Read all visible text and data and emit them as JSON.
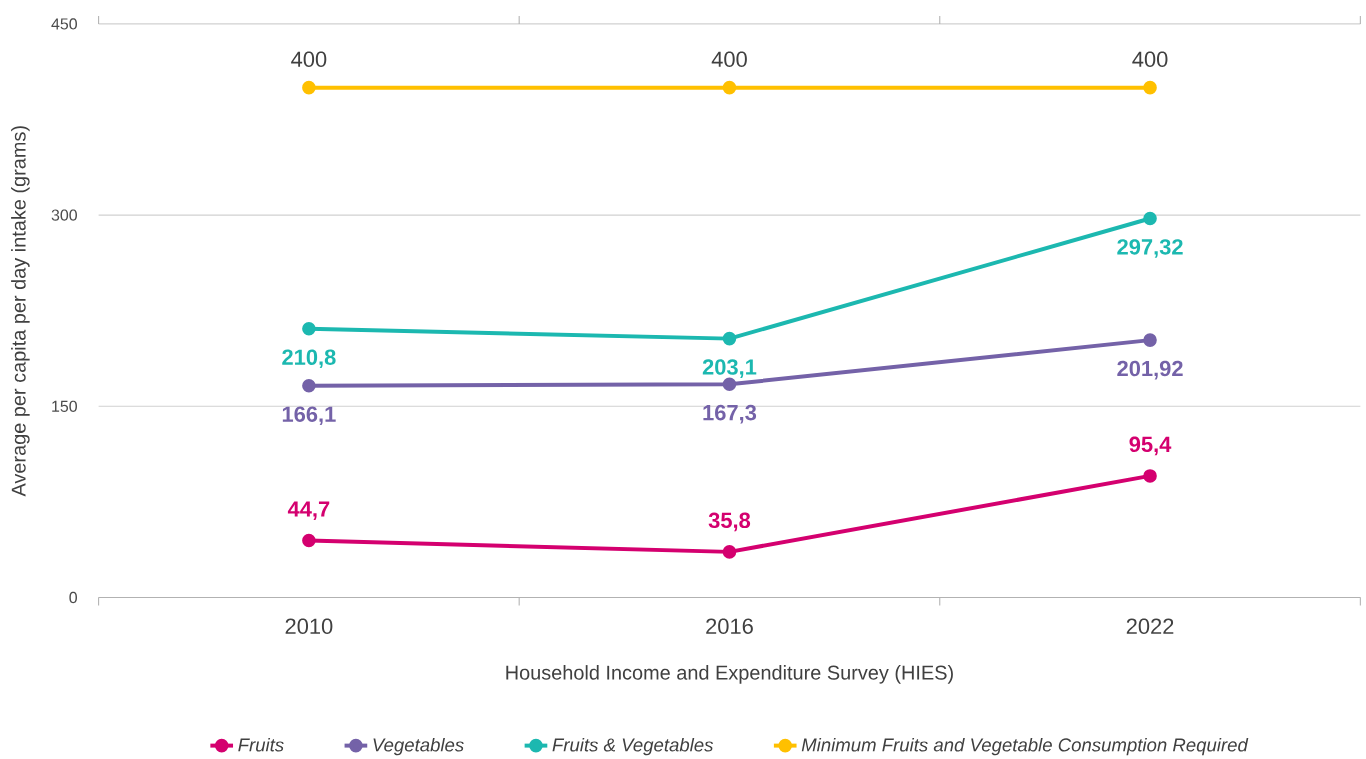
{
  "chart_data": {
    "type": "line",
    "xlabel": "Household Income and Expenditure Survey (HIES)",
    "ylabel": "Average per capita per day intake (grams)",
    "categories": [
      "2010",
      "2016",
      "2022"
    ],
    "series": [
      {
        "name": "Fruits",
        "color": "#d4006f",
        "values": [
          44.7,
          35.8,
          95.4
        ],
        "value_labels": [
          "44,7",
          "35,8",
          "95,4"
        ]
      },
      {
        "name": "Vegetables",
        "color": "#7462a8",
        "values": [
          166.1,
          167.3,
          201.92
        ],
        "value_labels": [
          "166,1",
          "167,3",
          "201,92"
        ]
      },
      {
        "name": "Fruits & Vegetables",
        "color": "#1cb8b0",
        "values": [
          210.8,
          203.1,
          297.32
        ],
        "value_labels": [
          "210,8",
          "203,1",
          "297,32"
        ]
      },
      {
        "name": "Minimum Fruits and Vegetable Consumption Required",
        "color": "#ffc000",
        "values": [
          400,
          400,
          400
        ],
        "value_labels": [
          "400",
          "400",
          "400"
        ]
      }
    ],
    "ylim": [
      0,
      450
    ],
    "yticks": [
      0,
      150,
      300,
      450
    ],
    "grid": "y",
    "legend": "bottom",
    "marker": "circle",
    "line_style": "solid"
  }
}
